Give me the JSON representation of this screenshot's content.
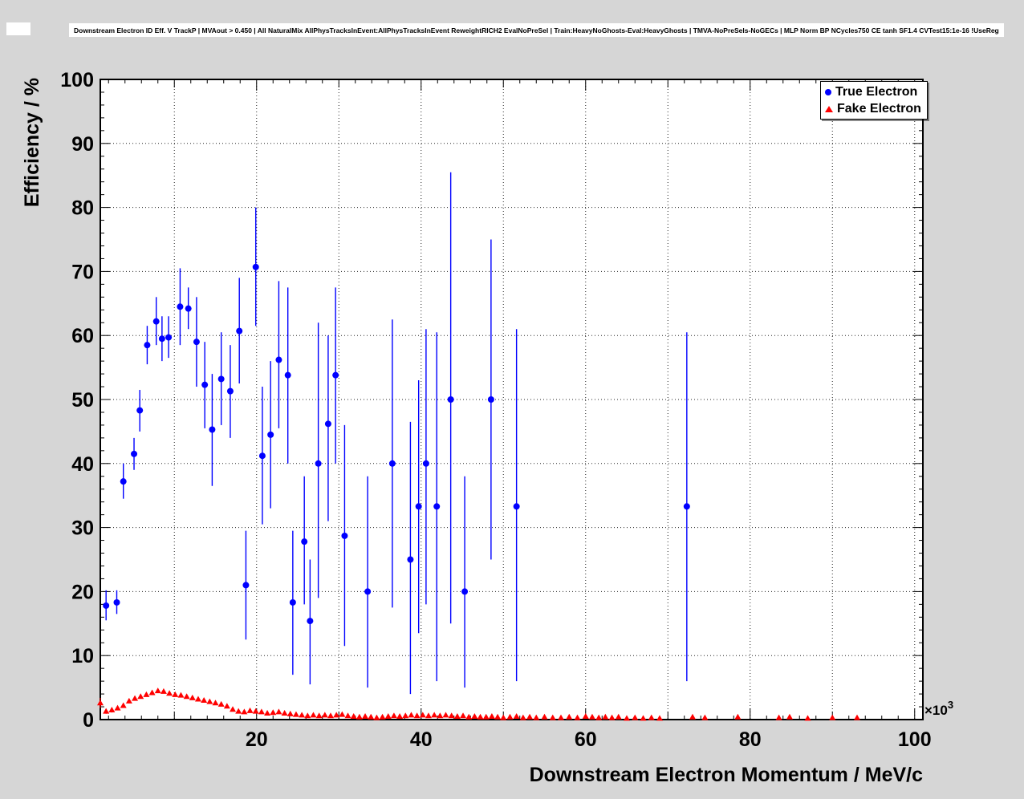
{
  "page": {
    "background": "#d6d6d6",
    "plot_background": "#ffffff"
  },
  "header": {
    "title": "Downstream Electron ID Eff. V TrackP | MVAout > 0.450 | All NaturalMix AllPhysTracksInEvent:AllPhysTracksInEvent ReweightRICH2 EvalNoPreSel | Train:HeavyNoGhosts-Eval:HeavyGhosts | TMVA-NoPreSels-NoGECs | MLP Norm BP NCycles750 CE tanh SF1.4 CVTest15:1e-16 !UseReg"
  },
  "legend": {
    "entries": [
      {
        "label": "True Electron",
        "marker": "circle",
        "color": "#0000ff"
      },
      {
        "label": "Fake Electron",
        "marker": "triangle",
        "color": "#ff0000"
      }
    ]
  },
  "chart_data": {
    "type": "scatter",
    "title": "Downstream Electron ID Eff. V TrackP | MVAout > 0.450 | All NaturalMix AllPhysTracksInEvent:AllPhysTracksInEvent ReweightRICH2 EvalNoPreSel | Train:HeavyNoGhosts-Eval:HeavyGhosts | TMVA-NoPreSels-NoGECs | MLP Norm BP NCycles750 CE tanh SF1.4 CVTest15:1e-16 !UseReg",
    "xlabel": "Downstream Electron Momentum / MeV/c",
    "ylabel": "Efficiency / %",
    "x_multiplier_base": "×10",
    "x_multiplier_exp": "3",
    "xlim": [
      1,
      101
    ],
    "ylim": [
      0,
      100
    ],
    "grid": true,
    "x_major_ticks": [
      20,
      40,
      60,
      80,
      100
    ],
    "y_major_ticks": [
      0,
      10,
      20,
      30,
      40,
      50,
      60,
      70,
      80,
      90,
      100
    ],
    "x_grid": [
      10,
      20,
      30,
      40,
      50,
      60,
      70,
      80,
      90,
      100
    ],
    "y_grid": [
      10,
      20,
      30,
      40,
      50,
      60,
      70,
      80,
      90
    ],
    "x_minor_step": 2,
    "y_minor_step": 2,
    "legend_position": "top-right",
    "series": [
      {
        "name": "True Electron",
        "marker": "circle",
        "color": "#0000ff",
        "point_format": "[x(1e3 MeV/c), y(%), y_low(%), y_high(%)]",
        "points": [
          [
            1.7,
            17.8,
            15.5,
            20.2
          ],
          [
            3.0,
            18.3,
            16.5,
            20.2
          ],
          [
            3.8,
            37.2,
            34.5,
            40.0
          ],
          [
            5.1,
            41.5,
            39.0,
            44.0
          ],
          [
            5.8,
            48.3,
            45.0,
            51.5
          ],
          [
            6.7,
            58.5,
            55.5,
            61.5
          ],
          [
            7.8,
            62.2,
            58.5,
            66.0
          ],
          [
            8.5,
            59.5,
            56.0,
            63.0
          ],
          [
            9.3,
            59.7,
            56.5,
            63.0
          ],
          [
            10.7,
            64.5,
            58.5,
            70.5
          ],
          [
            11.7,
            64.2,
            61.0,
            67.5
          ],
          [
            12.7,
            59.0,
            52.0,
            66.0
          ],
          [
            13.7,
            52.3,
            45.5,
            59.0
          ],
          [
            14.6,
            45.3,
            36.5,
            54.0
          ],
          [
            15.7,
            53.2,
            46.0,
            60.5
          ],
          [
            16.8,
            51.3,
            44.0,
            58.5
          ],
          [
            17.9,
            60.7,
            52.5,
            69.0
          ],
          [
            18.7,
            21.0,
            12.5,
            29.5
          ],
          [
            19.9,
            70.7,
            61.5,
            80.0
          ],
          [
            20.7,
            41.2,
            30.5,
            52.0
          ],
          [
            21.7,
            44.5,
            33.0,
            56.0
          ],
          [
            22.7,
            56.2,
            45.5,
            68.5
          ],
          [
            23.8,
            53.8,
            40.0,
            67.5
          ],
          [
            24.4,
            18.3,
            7.0,
            29.5
          ],
          [
            25.8,
            27.8,
            18.0,
            38.0
          ],
          [
            26.5,
            15.4,
            5.5,
            25.0
          ],
          [
            27.5,
            40.0,
            19.0,
            62.0
          ],
          [
            28.7,
            46.2,
            31.0,
            60.0
          ],
          [
            29.6,
            53.8,
            40.0,
            67.5
          ],
          [
            30.7,
            28.7,
            11.5,
            46.0
          ],
          [
            33.5,
            20.0,
            5.0,
            38.0
          ],
          [
            36.5,
            40.0,
            17.5,
            62.5
          ],
          [
            38.7,
            25.0,
            4.0,
            46.5
          ],
          [
            39.7,
            33.3,
            13.5,
            53.0
          ],
          [
            40.6,
            40.0,
            18.0,
            61.0
          ],
          [
            41.9,
            33.3,
            6.0,
            60.5
          ],
          [
            43.6,
            50.0,
            15.0,
            85.5
          ],
          [
            45.3,
            20.0,
            5.0,
            38.0
          ],
          [
            48.5,
            50.0,
            25.0,
            75.0
          ],
          [
            51.6,
            33.3,
            6.0,
            61.0
          ],
          [
            72.3,
            33.3,
            6.0,
            60.5
          ]
        ]
      },
      {
        "name": "Fake Electron",
        "marker": "triangle",
        "color": "#ff0000",
        "point_format": "[x(1e3 MeV/c), y(%), y_err(%)]",
        "points": [
          [
            1.0,
            2.6,
            0.8
          ],
          [
            1.7,
            1.3,
            0.4
          ],
          [
            2.4,
            1.5,
            0.4
          ],
          [
            3.1,
            1.8,
            0.35
          ],
          [
            3.8,
            2.2,
            0.35
          ],
          [
            4.5,
            2.9,
            0.3
          ],
          [
            5.2,
            3.3,
            0.3
          ],
          [
            5.9,
            3.6,
            0.3
          ],
          [
            6.6,
            3.9,
            0.3
          ],
          [
            7.3,
            4.2,
            0.3
          ],
          [
            8.0,
            4.5,
            0.3
          ],
          [
            8.7,
            4.4,
            0.3
          ],
          [
            9.4,
            4.1,
            0.3
          ],
          [
            10.1,
            3.9,
            0.3
          ],
          [
            10.8,
            3.8,
            0.3
          ],
          [
            11.5,
            3.6,
            0.3
          ],
          [
            12.2,
            3.4,
            0.3
          ],
          [
            12.9,
            3.2,
            0.3
          ],
          [
            13.6,
            3.0,
            0.3
          ],
          [
            14.3,
            2.8,
            0.3
          ],
          [
            15.0,
            2.6,
            0.3
          ],
          [
            15.7,
            2.4,
            0.3
          ],
          [
            16.4,
            2.1,
            0.3
          ],
          [
            17.1,
            1.6,
            0.25
          ],
          [
            17.8,
            1.3,
            0.25
          ],
          [
            18.5,
            1.2,
            0.25
          ],
          [
            19.2,
            1.4,
            0.25
          ],
          [
            19.9,
            1.3,
            0.25
          ],
          [
            20.6,
            1.2,
            0.2
          ],
          [
            21.3,
            1.0,
            0.2
          ],
          [
            22.0,
            1.1,
            0.2
          ],
          [
            22.7,
            1.2,
            0.2
          ],
          [
            23.4,
            1.0,
            0.2
          ],
          [
            24.1,
            0.9,
            0.2
          ],
          [
            24.8,
            0.8,
            0.2
          ],
          [
            25.5,
            0.7,
            0.2
          ],
          [
            26.2,
            0.6,
            0.15
          ],
          [
            26.9,
            0.7,
            0.15
          ],
          [
            27.6,
            0.6,
            0.15
          ],
          [
            28.3,
            0.7,
            0.15
          ],
          [
            29.0,
            0.6,
            0.15
          ],
          [
            29.7,
            0.7,
            0.15
          ],
          [
            30.4,
            0.8,
            0.2
          ],
          [
            31.1,
            0.6,
            0.15
          ],
          [
            31.8,
            0.5,
            0.15
          ],
          [
            32.5,
            0.4,
            0.1
          ],
          [
            33.2,
            0.5,
            0.1
          ],
          [
            33.9,
            0.4,
            0.1
          ],
          [
            34.6,
            0.3,
            0.1
          ],
          [
            35.3,
            0.4,
            0.1
          ],
          [
            36.0,
            0.5,
            0.1
          ],
          [
            36.7,
            0.6,
            0.15
          ],
          [
            37.4,
            0.5,
            0.1
          ],
          [
            38.1,
            0.6,
            0.15
          ],
          [
            38.8,
            0.7,
            0.15
          ],
          [
            39.5,
            0.6,
            0.15
          ],
          [
            40.2,
            0.7,
            0.15
          ],
          [
            40.9,
            0.6,
            0.15
          ],
          [
            41.6,
            0.7,
            0.15
          ],
          [
            42.3,
            0.6,
            0.15
          ],
          [
            43.0,
            0.7,
            0.15
          ],
          [
            43.7,
            0.6,
            0.15
          ],
          [
            44.4,
            0.5,
            0.15
          ],
          [
            45.1,
            0.6,
            0.15
          ],
          [
            45.8,
            0.4,
            0.1
          ],
          [
            46.5,
            0.5,
            0.1
          ],
          [
            47.2,
            0.4,
            0.1
          ],
          [
            47.9,
            0.4,
            0.1
          ],
          [
            48.6,
            0.5,
            0.1
          ],
          [
            49.3,
            0.4,
            0.1
          ],
          [
            50.0,
            0.3,
            0.1
          ],
          [
            50.8,
            0.4,
            0.1
          ],
          [
            51.6,
            0.5,
            0.1
          ],
          [
            52.4,
            0.3,
            0.1
          ],
          [
            53.2,
            0.4,
            0.1
          ],
          [
            54.0,
            0.3,
            0.1
          ],
          [
            55.0,
            0.4,
            0.1
          ],
          [
            56.0,
            0.3,
            0.1
          ],
          [
            57.0,
            0.3,
            0.1
          ],
          [
            58.0,
            0.4,
            0.1
          ],
          [
            59.0,
            0.3,
            0.1
          ],
          [
            60.0,
            0.5,
            0.1
          ],
          [
            60.8,
            0.4,
            0.1
          ],
          [
            61.6,
            0.3,
            0.1
          ],
          [
            62.4,
            0.4,
            0.1
          ],
          [
            63.2,
            0.3,
            0.1
          ],
          [
            64.0,
            0.4,
            0.1
          ],
          [
            65.0,
            0.2,
            0.1
          ],
          [
            66.0,
            0.3,
            0.1
          ],
          [
            67.0,
            0.2,
            0.1
          ],
          [
            68.0,
            0.3,
            0.1
          ],
          [
            69.0,
            0.2,
            0.1
          ],
          [
            73.0,
            0.4,
            0.1
          ],
          [
            74.5,
            0.3,
            0.1
          ],
          [
            78.5,
            0.4,
            0.1
          ],
          [
            83.5,
            0.3,
            0.1
          ],
          [
            84.8,
            0.4,
            0.1
          ],
          [
            87.0,
            0.2,
            0.1
          ],
          [
            90.0,
            0.3,
            0.1
          ],
          [
            93.0,
            0.3,
            0.1
          ]
        ]
      }
    ]
  }
}
